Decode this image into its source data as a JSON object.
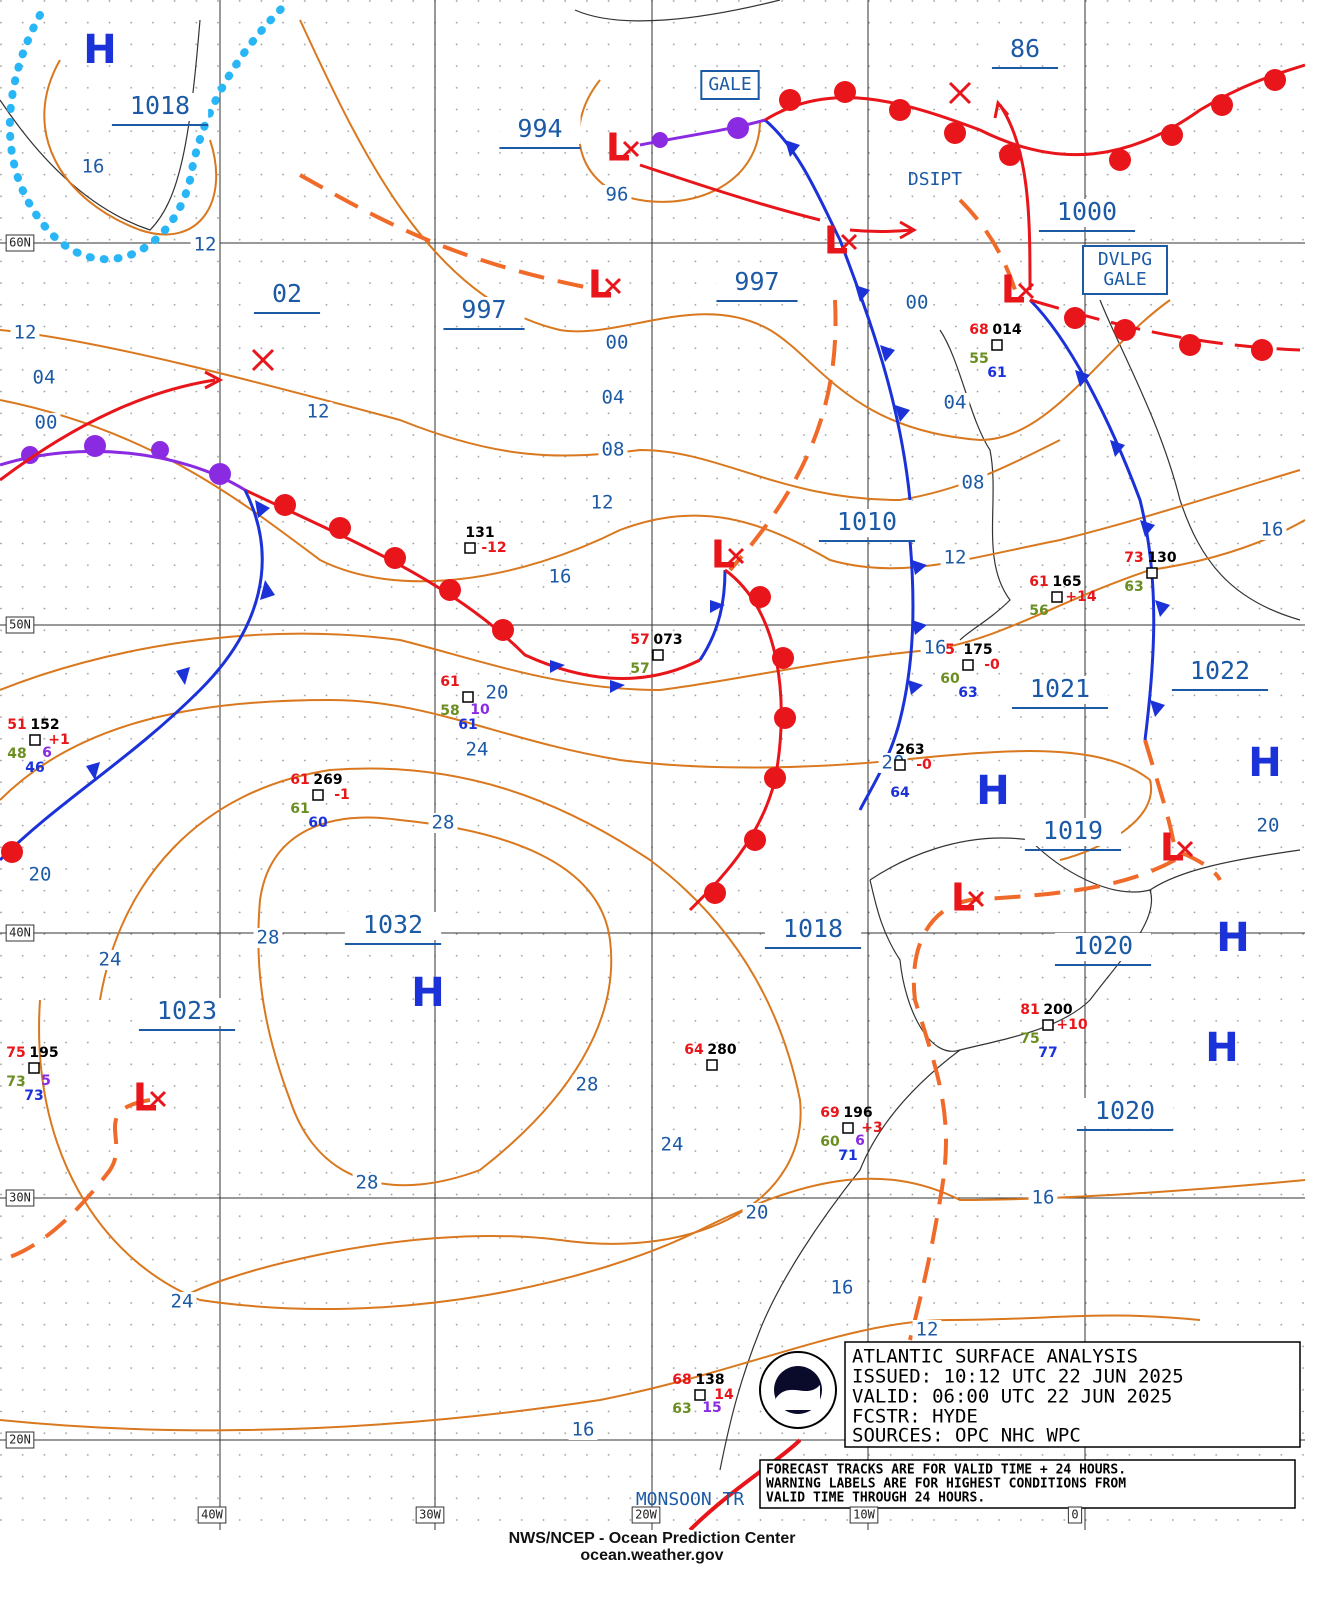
{
  "map": {
    "lat_labels": [
      "60N",
      "50N",
      "40N",
      "30N",
      "20N"
    ],
    "lon_labels": [
      "40W",
      "30W",
      "20W",
      "10W",
      "0"
    ],
    "pressure_centers": [
      "1018",
      "994",
      "86",
      "1000",
      "02",
      "997",
      "997",
      "1010",
      "1021",
      "1022",
      "1019",
      "1032",
      "1018",
      "1020",
      "1023",
      "1020"
    ],
    "isobar_labels": [
      "16",
      "12",
      "96",
      "00",
      "12",
      "04",
      "00",
      "12",
      "00",
      "04",
      "08",
      "12",
      "16",
      "04",
      "08",
      "12",
      "16",
      "20",
      "24",
      "28",
      "20",
      "20",
      "24",
      "28",
      "28",
      "24",
      "28",
      "24",
      "20",
      "16",
      "12",
      "16",
      "16",
      "16",
      "20"
    ],
    "highs": [
      "H",
      "H",
      "H",
      "H",
      "H",
      "H"
    ],
    "lows": [
      "L",
      "L",
      "L",
      "L",
      "L",
      "L",
      "L",
      "L"
    ],
    "warnings": [
      "GALE",
      "DSIPT",
      "DVLPG GALE",
      "MONSOON TR"
    ],
    "stations": [
      {
        "pressure": "131",
        "tendency": "-12"
      },
      {
        "temp": "57",
        "pressure": "073",
        "dew": "57"
      },
      {
        "temp": "51",
        "pressure": "152",
        "dew": "48",
        "wave": "6",
        "sea": "46",
        "tendency": "+1"
      },
      {
        "temp": "61",
        "pressure": "269",
        "dew": "61",
        "sea": "60",
        "tendency": "-1"
      },
      {
        "temp": "61",
        "dew": "58",
        "sea": "61",
        "wave": "10"
      },
      {
        "temp": "75",
        "pressure": "195",
        "dew": "73",
        "wave": "5",
        "sea": "73"
      },
      {
        "temp": "64",
        "pressure": "280"
      },
      {
        "temp": "69",
        "pressure": "196",
        "dew": "60",
        "wave": "6",
        "sea": "71",
        "tendency": "+3"
      },
      {
        "temp": "68",
        "pressure": "138",
        "dew": "63",
        "wave": "15",
        "tendency": "14"
      },
      {
        "temp": "68",
        "pressure": "014",
        "dew": "55",
        "sea": "61"
      },
      {
        "temp": "61",
        "pressure": "165",
        "dew": "56",
        "tendency": "+14"
      },
      {
        "temp": "73",
        "pressure": "130",
        "dew": "63"
      },
      {
        "temp": "5",
        "pressure": "175",
        "dew": "60",
        "sea": "63",
        "tendency": "-0"
      },
      {
        "pressure": "263",
        "sea": "64",
        "tendency": "-0"
      },
      {
        "temp": "81",
        "pressure": "200",
        "dew": "75",
        "sea": "77",
        "tendency": "+10"
      }
    ]
  },
  "info_box": {
    "title": "ATLANTIC SURFACE ANALYSIS",
    "issued": "ISSUED: 10:12 UTC 22 JUN 2025",
    "valid": "VALID:  06:00 UTC 22 JUN 2025",
    "forecaster": "FCSTR:  HYDE",
    "sources": "SOURCES: OPC NHC WPC"
  },
  "note": [
    "FORECAST TRACKS ARE FOR VALID TIME + 24 HOURS.",
    "WARNING LABELS ARE FOR HIGHEST CONDITIONS FROM",
    "VALID TIME THROUGH 24 HOURS."
  ],
  "footer": [
    "NWS/NCEP - Ocean Prediction Center",
    "ocean.weather.gov"
  ]
}
